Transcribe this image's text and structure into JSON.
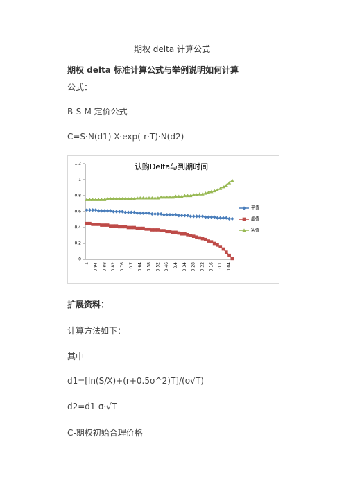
{
  "title": "期权 delta 计算公式",
  "heading": "期权 delta 标准计算公式与举例说明如何计算",
  "paragraphs_before": [
    "公式：",
    "B-S-M 定价公式",
    "C=S·N(d1)-X·exp(-r·T)·N(d2)"
  ],
  "chart_data": {
    "type": "line",
    "title": "认购Delta与到期时间",
    "categories": [
      "1",
      null,
      null,
      "0.94",
      null,
      null,
      "0.88",
      null,
      null,
      "0.82",
      null,
      null,
      "0.76",
      null,
      null,
      "0.7",
      null,
      null,
      "0.64",
      null,
      null,
      "0.58",
      null,
      null,
      "0.52",
      null,
      null,
      "0.46",
      null,
      null,
      "0.4",
      null,
      null,
      "0.34",
      null,
      null,
      "0.28",
      null,
      null,
      "0.22",
      null,
      null,
      "0.16",
      null,
      null,
      "0.1",
      null,
      null,
      "0.04",
      null
    ],
    "ylim": [
      0,
      1.2
    ],
    "yticks": [
      0,
      0.2,
      0.4,
      0.6,
      0.8,
      1,
      1.2
    ],
    "grid": false,
    "legend": "right",
    "series": [
      {
        "name": "平值",
        "color": "#4a7ebb",
        "marker": "diamond",
        "values": [
          0.62,
          0.62,
          0.62,
          0.62,
          0.61,
          0.61,
          0.61,
          0.61,
          0.61,
          0.6,
          0.6,
          0.6,
          0.6,
          0.59,
          0.59,
          0.59,
          0.59,
          0.58,
          0.58,
          0.58,
          0.58,
          0.58,
          0.57,
          0.57,
          0.57,
          0.57,
          0.56,
          0.56,
          0.56,
          0.56,
          0.56,
          0.55,
          0.55,
          0.55,
          0.55,
          0.54,
          0.54,
          0.54,
          0.54,
          0.54,
          0.53,
          0.53,
          0.53,
          0.53,
          0.52,
          0.52,
          0.52,
          0.52,
          0.51,
          0.51
        ]
      },
      {
        "name": "虚值",
        "color": "#be4b48",
        "marker": "square",
        "values": [
          0.45,
          0.45,
          0.44,
          0.44,
          0.44,
          0.43,
          0.43,
          0.43,
          0.42,
          0.42,
          0.42,
          0.41,
          0.41,
          0.41,
          0.4,
          0.4,
          0.4,
          0.39,
          0.39,
          0.39,
          0.38,
          0.38,
          0.37,
          0.37,
          0.37,
          0.36,
          0.36,
          0.35,
          0.35,
          0.34,
          0.34,
          0.33,
          0.32,
          0.32,
          0.31,
          0.3,
          0.29,
          0.28,
          0.27,
          0.26,
          0.25,
          0.23,
          0.22,
          0.2,
          0.18,
          0.16,
          0.13,
          0.09,
          0.05,
          0.01
        ]
      },
      {
        "name": "实值",
        "color": "#98b954",
        "marker": "triangle",
        "values": [
          0.75,
          0.75,
          0.75,
          0.75,
          0.75,
          0.75,
          0.75,
          0.76,
          0.76,
          0.76,
          0.76,
          0.76,
          0.76,
          0.76,
          0.76,
          0.76,
          0.76,
          0.77,
          0.77,
          0.77,
          0.77,
          0.77,
          0.77,
          0.77,
          0.77,
          0.78,
          0.78,
          0.78,
          0.78,
          0.78,
          0.79,
          0.79,
          0.79,
          0.8,
          0.8,
          0.8,
          0.81,
          0.81,
          0.82,
          0.82,
          0.83,
          0.84,
          0.85,
          0.86,
          0.87,
          0.89,
          0.91,
          0.93,
          0.96,
          0.99
        ]
      }
    ]
  },
  "extension_heading": "扩展资料：",
  "paragraphs_after": [
    "计算方法如下：",
    "其中",
    "d1=[ln(S/X)+(r+0.5σ^2)T]/(σ√T)",
    "d2=d1-σ·√T",
    "C-期权初始合理价格"
  ]
}
